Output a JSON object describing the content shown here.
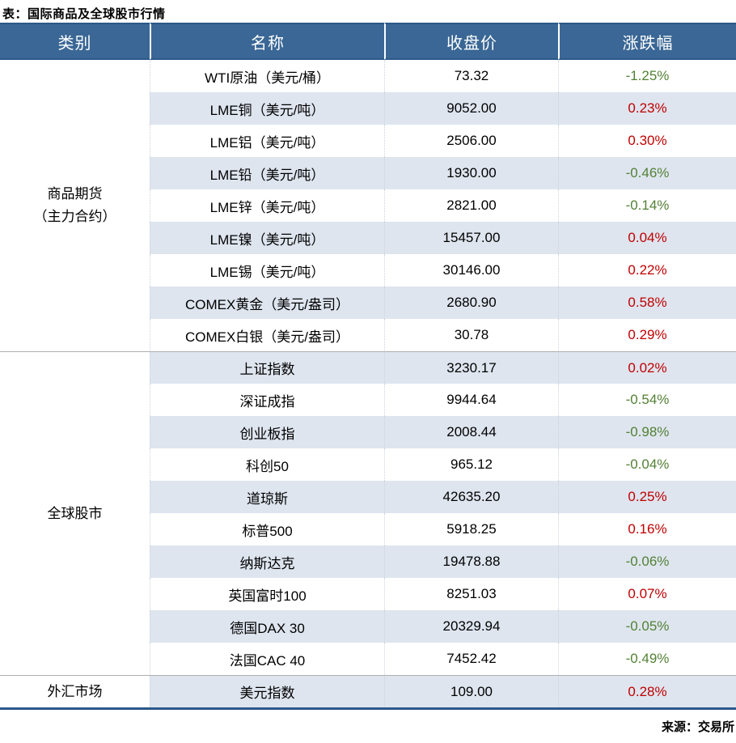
{
  "title": "表：国际商品及全球股市行情",
  "source": "来源：交易所",
  "colors": {
    "header_bg": "#3A6795",
    "header_text": "#FFFFFF",
    "dark_border": "#2B5889",
    "alt_row_bg": "#DEE5EF",
    "section_divider": "#AFAFAF",
    "positive_change": "#C00000",
    "negative_change": "#538135"
  },
  "chart_data": {
    "type": "table",
    "title": "国际商品及全球股市行情",
    "columns": [
      "类别",
      "名称",
      "收盘价",
      "涨跌幅"
    ],
    "sections": [
      {
        "category": "商品期货（主力合约）",
        "category_line1": "商品期货",
        "category_line2": "（主力合约）",
        "row_span": 9
      },
      {
        "category": "全球股市",
        "row_span": 10
      },
      {
        "category": "外汇市场",
        "row_span": 1
      }
    ],
    "rows": [
      {
        "name": "WTI原油（美元/桶）",
        "close": "73.32",
        "change": "-1.25%",
        "dir": "down"
      },
      {
        "name": "LME铜（美元/吨）",
        "close": "9052.00",
        "change": "0.23%",
        "dir": "up"
      },
      {
        "name": "LME铝（美元/吨）",
        "close": "2506.00",
        "change": "0.30%",
        "dir": "up"
      },
      {
        "name": "LME铅（美元/吨）",
        "close": "1930.00",
        "change": "-0.46%",
        "dir": "down"
      },
      {
        "name": "LME锌（美元/吨）",
        "close": "2821.00",
        "change": "-0.14%",
        "dir": "down"
      },
      {
        "name": "LME镍（美元/吨）",
        "close": "15457.00",
        "change": "0.04%",
        "dir": "up"
      },
      {
        "name": "LME锡（美元/吨）",
        "close": "30146.00",
        "change": "0.22%",
        "dir": "up"
      },
      {
        "name": "COMEX黄金（美元/盎司）",
        "close": "2680.90",
        "change": "0.58%",
        "dir": "up"
      },
      {
        "name": "COMEX白银（美元/盎司）",
        "close": "30.78",
        "change": "0.29%",
        "dir": "up"
      },
      {
        "name": "上证指数",
        "close": "3230.17",
        "change": "0.02%",
        "dir": "up"
      },
      {
        "name": "深证成指",
        "close": "9944.64",
        "change": "-0.54%",
        "dir": "down"
      },
      {
        "name": "创业板指",
        "close": "2008.44",
        "change": "-0.98%",
        "dir": "down"
      },
      {
        "name": "科创50",
        "close": "965.12",
        "change": "-0.04%",
        "dir": "down"
      },
      {
        "name": "道琼斯",
        "close": "42635.20",
        "change": "0.25%",
        "dir": "up"
      },
      {
        "name": "标普500",
        "close": "5918.25",
        "change": "0.16%",
        "dir": "up"
      },
      {
        "name": "纳斯达克",
        "close": "19478.88",
        "change": "-0.06%",
        "dir": "down"
      },
      {
        "name": "英国富时100",
        "close": "8251.03",
        "change": "0.07%",
        "dir": "up"
      },
      {
        "name": "德国DAX 30",
        "close": "20329.94",
        "change": "-0.05%",
        "dir": "down"
      },
      {
        "name": "法国CAC 40",
        "close": "7452.42",
        "change": "-0.49%",
        "dir": "down"
      },
      {
        "name": "美元指数",
        "close": "109.00",
        "change": "0.28%",
        "dir": "up"
      }
    ]
  }
}
